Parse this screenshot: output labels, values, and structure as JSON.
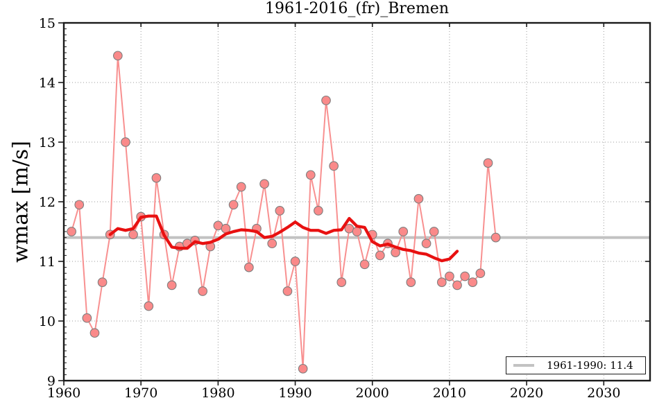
{
  "chart_data": {
    "type": "line",
    "title": "1961-2016_(fr)_Bremen",
    "xlabel": "",
    "ylabel": "wmax [m/s]",
    "xlim": [
      1960,
      2036
    ],
    "ylim": [
      9,
      15
    ],
    "xticks": [
      1960,
      1970,
      1980,
      1990,
      2000,
      2010,
      2020,
      2030
    ],
    "yticks": [
      9,
      10,
      11,
      12,
      13,
      14,
      15
    ],
    "y_minor_step": 0.1,
    "grid": "dotted",
    "grid_color": "#999999",
    "series": [
      {
        "name": "annual-wmax",
        "style": "scatter-line",
        "marker_fill": "#fa8a8a",
        "marker_edge": "#7d7d7d",
        "line_color": "#f89090",
        "x": [
          1961,
          1962,
          1963,
          1964,
          1965,
          1966,
          1967,
          1968,
          1969,
          1970,
          1971,
          1972,
          1973,
          1974,
          1975,
          1976,
          1977,
          1978,
          1979,
          1980,
          1981,
          1982,
          1983,
          1984,
          1985,
          1986,
          1987,
          1988,
          1989,
          1990,
          1991,
          1992,
          1993,
          1994,
          1995,
          1996,
          1997,
          1998,
          1999,
          2000,
          2001,
          2002,
          2003,
          2004,
          2005,
          2006,
          2007,
          2008,
          2009,
          2010,
          2011,
          2012,
          2013,
          2014,
          2015,
          2016
        ],
        "values": [
          11.5,
          11.95,
          10.05,
          9.8,
          10.65,
          11.45,
          14.45,
          13.0,
          11.45,
          11.75,
          10.25,
          12.4,
          11.45,
          10.6,
          11.25,
          11.3,
          11.35,
          10.5,
          11.25,
          11.6,
          11.55,
          11.95,
          12.25,
          10.9,
          11.55,
          12.3,
          11.3,
          11.85,
          10.5,
          11.0,
          9.2,
          12.45,
          11.85,
          13.7,
          12.6,
          10.65,
          11.55,
          11.5,
          10.95,
          11.45,
          11.1,
          11.3,
          11.15,
          11.5,
          10.65,
          12.05,
          11.3,
          11.5,
          10.65,
          10.75,
          10.6,
          10.75,
          10.65,
          10.8,
          12.65,
          11.4
        ]
      },
      {
        "name": "running-mean",
        "style": "line",
        "line_color": "#e81010",
        "x": [
          1966,
          1967,
          1968,
          1969,
          1970,
          1971,
          1972,
          1973,
          1974,
          1975,
          1976,
          1977,
          1978,
          1979,
          1980,
          1981,
          1982,
          1983,
          1984,
          1985,
          1986,
          1987,
          1988,
          1989,
          1990,
          1991,
          1992,
          1993,
          1994,
          1995,
          1996,
          1997,
          1998,
          1999,
          2000,
          2001,
          2002,
          2003,
          2004,
          2005,
          2006,
          2007,
          2008,
          2009,
          2010,
          2011
        ],
        "values": [
          11.45,
          11.55,
          11.52,
          11.55,
          11.74,
          11.76,
          11.76,
          11.44,
          11.24,
          11.22,
          11.22,
          11.33,
          11.3,
          11.32,
          11.37,
          11.46,
          11.5,
          11.53,
          11.52,
          11.5,
          11.4,
          11.42,
          11.49,
          11.57,
          11.66,
          11.57,
          11.52,
          11.52,
          11.47,
          11.52,
          11.53,
          11.72,
          11.59,
          11.57,
          11.33,
          11.26,
          11.29,
          11.24,
          11.2,
          11.18,
          11.14,
          11.12,
          11.06,
          11.01,
          11.04,
          11.17
        ]
      }
    ],
    "refline": {
      "name": "baseline-1961-1990",
      "value": 11.4,
      "color": "#c2c2c2"
    },
    "legend": {
      "position": "lower-right",
      "entries": [
        {
          "label": "1961-1990: 11.4",
          "color": "#c2c2c2"
        }
      ]
    }
  }
}
